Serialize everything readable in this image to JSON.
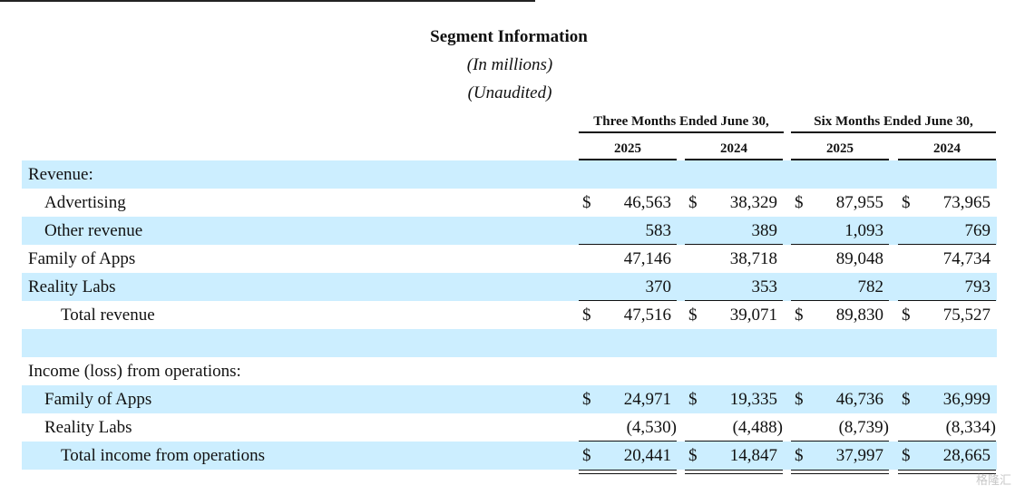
{
  "title": "Segment Information",
  "subtitle_units": "(In millions)",
  "subtitle_audit": "(Unaudited)",
  "column_groups": [
    "Three Months Ended June 30,",
    "Six Months Ended June 30,"
  ],
  "years": [
    "2025",
    "2024",
    "2025",
    "2024"
  ],
  "rows": [
    {
      "label": "Revenue:",
      "shade": true,
      "indent": 0,
      "cells": []
    },
    {
      "label": "Advertising",
      "shade": false,
      "indent": 1,
      "dollar": true,
      "cells": [
        "46,563",
        "38,329",
        "87,955",
        "73,965"
      ]
    },
    {
      "label": "Other revenue",
      "shade": true,
      "indent": 1,
      "underline": "single",
      "cells": [
        "583",
        "389",
        "1,093",
        "769"
      ]
    },
    {
      "label": "Family of Apps",
      "shade": false,
      "indent": 0,
      "cells": [
        "47,146",
        "38,718",
        "89,048",
        "74,734"
      ]
    },
    {
      "label": "Reality Labs",
      "shade": true,
      "indent": 0,
      "underline": "single",
      "cells": [
        "370",
        "353",
        "782",
        "793"
      ]
    },
    {
      "label": "Total revenue",
      "shade": false,
      "indent": 2,
      "dollar": true,
      "underline": "double",
      "cells": [
        "47,516",
        "39,071",
        "89,830",
        "75,527"
      ]
    },
    {
      "label": "",
      "shade": true,
      "indent": 0,
      "cells": []
    },
    {
      "label": "Income (loss) from operations:",
      "shade": false,
      "indent": 0,
      "cells": []
    },
    {
      "label": "Family of Apps",
      "shade": true,
      "indent": 1,
      "dollar": true,
      "cells": [
        "24,971",
        "19,335",
        "46,736",
        "36,999"
      ]
    },
    {
      "label": "Reality Labs",
      "shade": false,
      "indent": 1,
      "underline": "single",
      "cells": [
        "(4,530)",
        "(4,488)",
        "(8,739)",
        "(8,334)"
      ]
    },
    {
      "label": "Total income from operations",
      "shade": true,
      "indent": 2,
      "dollar": true,
      "underline": "double",
      "cells": [
        "20,441",
        "14,847",
        "37,997",
        "28,665"
      ]
    }
  ],
  "dollar_sign": "$",
  "watermark": "格隆汇"
}
